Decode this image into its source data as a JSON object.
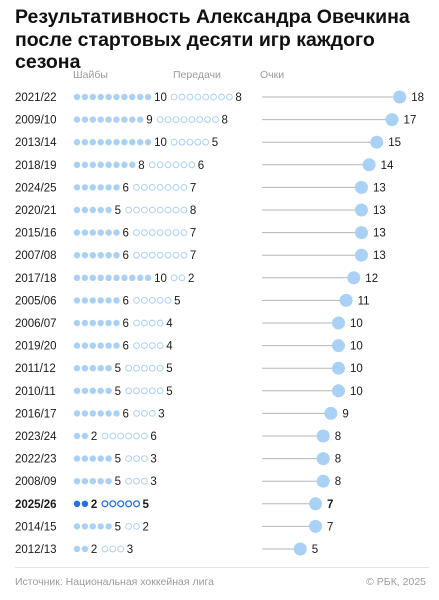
{
  "title": "Результативность Александра Овечкина после стартовых десяти игр каждого сезона",
  "colors": {
    "dot": "#a9d0f5",
    "dot_highlight": "#1e73e8",
    "track": "#b5b5b5",
    "text": "#1a1a1a",
    "muted": "#9a9a9a"
  },
  "chart_data": {
    "type": "table",
    "columns": [
      "Шайбы",
      "Передачи",
      "Очки"
    ],
    "highlight_season": "2025/26",
    "rows": [
      {
        "season": "2021/22",
        "goals": 10,
        "assists": 8,
        "points": 18
      },
      {
        "season": "2009/10",
        "goals": 9,
        "assists": 8,
        "points": 17
      },
      {
        "season": "2013/14",
        "goals": 10,
        "assists": 5,
        "points": 15
      },
      {
        "season": "2018/19",
        "goals": 8,
        "assists": 6,
        "points": 14
      },
      {
        "season": "2024/25",
        "goals": 6,
        "assists": 7,
        "points": 13
      },
      {
        "season": "2020/21",
        "goals": 5,
        "assists": 8,
        "points": 13
      },
      {
        "season": "2015/16",
        "goals": 6,
        "assists": 7,
        "points": 13
      },
      {
        "season": "2007/08",
        "goals": 6,
        "assists": 7,
        "points": 13
      },
      {
        "season": "2017/18",
        "goals": 10,
        "assists": 2,
        "points": 12
      },
      {
        "season": "2005/06",
        "goals": 6,
        "assists": 5,
        "points": 11
      },
      {
        "season": "2006/07",
        "goals": 6,
        "assists": 4,
        "points": 10
      },
      {
        "season": "2019/20",
        "goals": 6,
        "assists": 4,
        "points": 10
      },
      {
        "season": "2011/12",
        "goals": 5,
        "assists": 5,
        "points": 10
      },
      {
        "season": "2010/11",
        "goals": 5,
        "assists": 5,
        "points": 10
      },
      {
        "season": "2016/17",
        "goals": 6,
        "assists": 3,
        "points": 9
      },
      {
        "season": "2023/24",
        "goals": 2,
        "assists": 6,
        "points": 8
      },
      {
        "season": "2022/23",
        "goals": 5,
        "assists": 3,
        "points": 8
      },
      {
        "season": "2008/09",
        "goals": 5,
        "assists": 3,
        "points": 8
      },
      {
        "season": "2025/26",
        "goals": 2,
        "assists": 5,
        "points": 7
      },
      {
        "season": "2014/15",
        "goals": 5,
        "assists": 2,
        "points": 7
      },
      {
        "season": "2012/13",
        "goals": 2,
        "assists": 3,
        "points": 5
      }
    ]
  },
  "footer": {
    "source": "Источник: Национальная хоккейная лига",
    "copyright": "© РБК, 2025"
  }
}
